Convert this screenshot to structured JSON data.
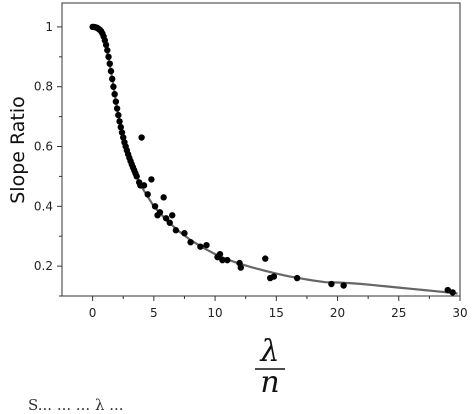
{
  "chart_data": {
    "type": "scatter",
    "ylabel": "Slope Ratio",
    "xlabel_num": "λ",
    "xlabel_den": "n",
    "xlim": [
      -2.5,
      30
    ],
    "ylim": [
      0.1,
      1.08
    ],
    "x_ticks": [
      0,
      5,
      10,
      15,
      20,
      25,
      30
    ],
    "y_ticks": [
      0.2,
      0.4,
      0.6,
      0.8,
      1
    ],
    "y_tick_labels": [
      "0.2",
      "0.4",
      "0.6",
      "0.8",
      "1"
    ],
    "grid": false,
    "marker_color": "#000000",
    "curve_color": "#666666",
    "points": [
      [
        0.0,
        1.0
      ],
      [
        0.1,
        1.0
      ],
      [
        0.2,
        0.999
      ],
      [
        0.3,
        0.998
      ],
      [
        0.4,
        0.996
      ],
      [
        0.5,
        0.993
      ],
      [
        0.6,
        0.99
      ],
      [
        0.7,
        0.985
      ],
      [
        0.8,
        0.978
      ],
      [
        0.9,
        0.968
      ],
      [
        1.0,
        0.955
      ],
      [
        1.1,
        0.94
      ],
      [
        1.2,
        0.922
      ],
      [
        1.3,
        0.9
      ],
      [
        1.4,
        0.877
      ],
      [
        1.5,
        0.852
      ],
      [
        1.6,
        0.826
      ],
      [
        1.7,
        0.8
      ],
      [
        1.8,
        0.775
      ],
      [
        1.9,
        0.75
      ],
      [
        2.0,
        0.727
      ],
      [
        2.1,
        0.705
      ],
      [
        2.2,
        0.684
      ],
      [
        2.3,
        0.665
      ],
      [
        2.4,
        0.647
      ],
      [
        2.5,
        0.63
      ],
      [
        2.6,
        0.614
      ],
      [
        2.7,
        0.6
      ],
      [
        2.8,
        0.587
      ],
      [
        2.9,
        0.574
      ],
      [
        3.0,
        0.562
      ],
      [
        3.1,
        0.551
      ],
      [
        3.2,
        0.54
      ],
      [
        3.3,
        0.53
      ],
      [
        3.4,
        0.52
      ],
      [
        3.5,
        0.51
      ],
      [
        3.6,
        0.5
      ],
      [
        3.8,
        0.48
      ],
      [
        3.9,
        0.47
      ],
      [
        4.0,
        0.63
      ],
      [
        4.2,
        0.47
      ],
      [
        4.5,
        0.44
      ],
      [
        4.8,
        0.49
      ],
      [
        5.1,
        0.4
      ],
      [
        5.3,
        0.37
      ],
      [
        5.5,
        0.38
      ],
      [
        5.8,
        0.43
      ],
      [
        6.0,
        0.36
      ],
      [
        6.3,
        0.345
      ],
      [
        6.5,
        0.37
      ],
      [
        6.8,
        0.32
      ],
      [
        7.5,
        0.31
      ],
      [
        8.0,
        0.28
      ],
      [
        8.8,
        0.265
      ],
      [
        9.3,
        0.27
      ],
      [
        10.2,
        0.23
      ],
      [
        10.4,
        0.24
      ],
      [
        10.6,
        0.22
      ],
      [
        11.0,
        0.22
      ],
      [
        12.0,
        0.21
      ],
      [
        12.1,
        0.195
      ],
      [
        14.1,
        0.225
      ],
      [
        14.5,
        0.16
      ],
      [
        14.8,
        0.165
      ],
      [
        16.7,
        0.16
      ],
      [
        19.5,
        0.14
      ],
      [
        20.5,
        0.135
      ],
      [
        29.0,
        0.12
      ],
      [
        29.4,
        0.112
      ]
    ],
    "curve": [
      [
        0.0,
        1.0
      ],
      [
        0.5,
        0.993
      ],
      [
        1.0,
        0.955
      ],
      [
        1.5,
        0.852
      ],
      [
        2.0,
        0.727
      ],
      [
        2.5,
        0.63
      ],
      [
        3.0,
        0.562
      ],
      [
        3.5,
        0.51
      ],
      [
        4.0,
        0.465
      ],
      [
        5.0,
        0.4
      ],
      [
        6.0,
        0.355
      ],
      [
        7.0,
        0.318
      ],
      [
        8.0,
        0.287
      ],
      [
        9.0,
        0.262
      ],
      [
        10.0,
        0.24
      ],
      [
        11.0,
        0.222
      ],
      [
        12.0,
        0.208
      ],
      [
        13.0,
        0.196
      ],
      [
        14.0,
        0.185
      ],
      [
        15.0,
        0.175
      ],
      [
        16.0,
        0.166
      ],
      [
        17.0,
        0.159
      ],
      [
        18.0,
        0.152
      ],
      [
        19.0,
        0.146
      ],
      [
        20.0,
        0.145
      ],
      [
        21.0,
        0.143
      ],
      [
        22.0,
        0.14
      ],
      [
        23.0,
        0.136
      ],
      [
        24.0,
        0.132
      ],
      [
        25.0,
        0.128
      ],
      [
        26.0,
        0.124
      ],
      [
        27.0,
        0.12
      ],
      [
        28.0,
        0.116
      ],
      [
        29.0,
        0.112
      ],
      [
        29.8,
        0.108
      ]
    ]
  },
  "caption": "S...  ...  ...  λ  ..."
}
